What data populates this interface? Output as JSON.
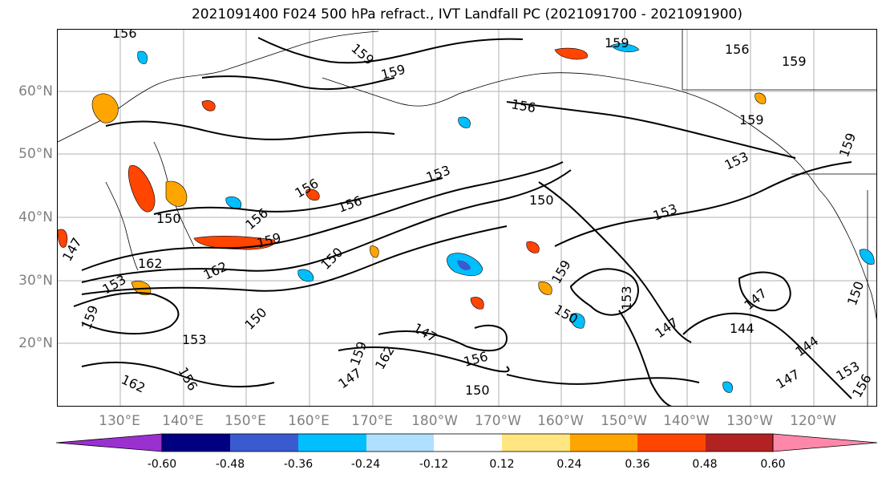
{
  "title": "2021091400 F024 500 hPa refract., IVT Landfall PC (2021091700 - 2021091900)",
  "map": {
    "latitude_labels": [
      "60°N",
      "50°N",
      "40°N",
      "30°N",
      "20°N"
    ],
    "longitude_labels": [
      "130°E",
      "140°E",
      "150°E",
      "160°E",
      "170°E",
      "180°W",
      "170°W",
      "160°W",
      "150°W",
      "140°W",
      "130°W",
      "120°W"
    ],
    "contour_labels": [
      "156",
      "159",
      "159",
      "159",
      "156",
      "159",
      "156",
      "159",
      "153",
      "153",
      "150",
      "153",
      "156",
      "156",
      "156",
      "150",
      "159",
      "162",
      "162",
      "147",
      "153",
      "159",
      "162",
      "150",
      "153",
      "156",
      "150",
      "147",
      "159",
      "162",
      "147",
      "150",
      "156",
      "150",
      "159",
      "153",
      "147",
      "147",
      "144",
      "144",
      "147",
      "153",
      "156",
      "150",
      "159"
    ]
  },
  "colorbar": {
    "colors": [
      "#9b30d0",
      "#000080",
      "#3a5ad0",
      "#00bfff",
      "#b0e0ff",
      "#ffffff",
      "#ffe680",
      "#ffa500",
      "#ff4500",
      "#b22222",
      "#ff88aa"
    ],
    "tick_labels": [
      "-0.60",
      "-0.48",
      "-0.36",
      "-0.24",
      "-0.12",
      "0.12",
      "0.24",
      "0.36",
      "0.48",
      "0.60"
    ]
  }
}
